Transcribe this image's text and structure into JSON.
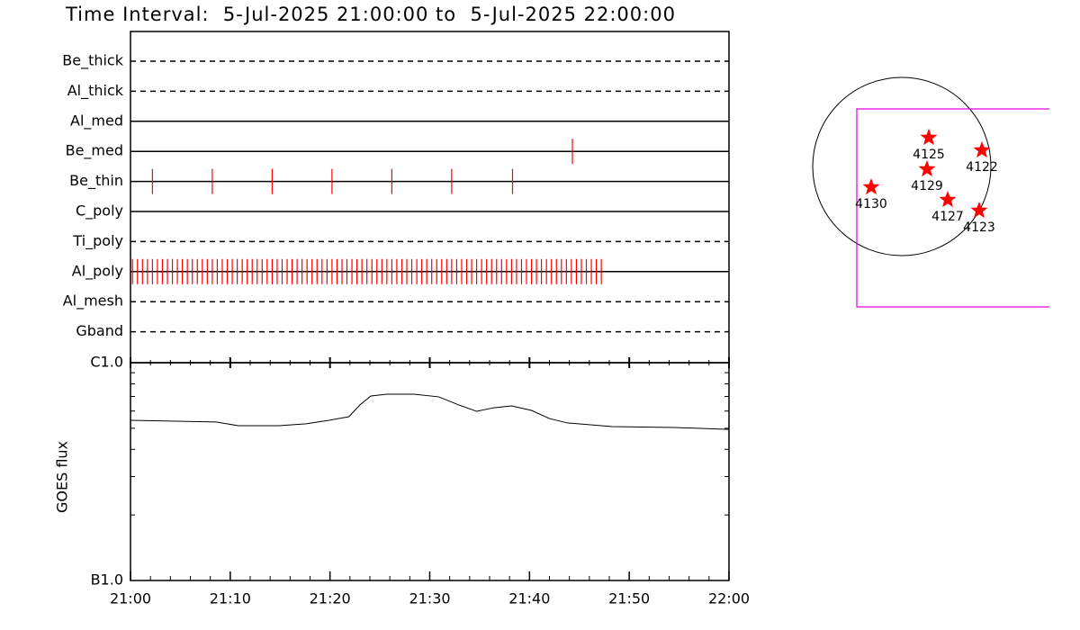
{
  "title": "Time Interval:  5-Jul-2025 21:00:00 to  5-Jul-2025 22:00:00",
  "chart_data": [
    {
      "type": "timeline",
      "xlim": [
        0,
        60
      ],
      "color": "#ff0000",
      "series": [
        {
          "name": "Be_thick",
          "style": "dashed",
          "values": []
        },
        {
          "name": "Al_thick",
          "style": "dashed",
          "values": []
        },
        {
          "name": "Al_med",
          "style": "solid",
          "values": []
        },
        {
          "name": "Be_med",
          "style": "solid",
          "values": [
            44.3
          ]
        },
        {
          "name": "Be_thin",
          "style": "solid",
          "values": [
            2.2,
            8.2,
            14.2,
            20.2,
            26.2,
            32.2,
            38.3
          ]
        },
        {
          "name": "C_poly",
          "style": "solid",
          "values": []
        },
        {
          "name": "Ti_poly",
          "style": "dashed",
          "values": []
        },
        {
          "name": "Al_poly",
          "style": "solid",
          "values": [
            0.2,
            0.7,
            1.2,
            1.7,
            2.2,
            2.7,
            3.2,
            3.7,
            4.2,
            4.7,
            5.2,
            5.7,
            6.2,
            6.7,
            7.2,
            7.7,
            8.2,
            8.7,
            9.2,
            9.7,
            10.2,
            10.7,
            11.2,
            11.7,
            12.2,
            12.7,
            13.2,
            13.7,
            14.2,
            14.7,
            15.2,
            15.7,
            16.2,
            16.7,
            17.2,
            17.7,
            18.2,
            18.7,
            19.2,
            19.7,
            20.2,
            20.7,
            21.2,
            21.7,
            22.2,
            22.7,
            23.2,
            23.7,
            24.2,
            24.7,
            25.2,
            25.7,
            26.2,
            26.7,
            27.2,
            27.7,
            28.2,
            28.7,
            29.2,
            29.7,
            30.2,
            30.7,
            31.2,
            31.7,
            32.2,
            32.7,
            33.2,
            33.7,
            34.2,
            34.7,
            35.2,
            35.7,
            36.2,
            36.7,
            37.2,
            37.7,
            38.2,
            38.7,
            39.2,
            39.7,
            40.2,
            40.7,
            41.2,
            41.7,
            42.2,
            42.7,
            43.2,
            43.7,
            44.2,
            44.7,
            45.2,
            45.7,
            46.2,
            46.7,
            47.2
          ]
        },
        {
          "name": "Al_mesh",
          "style": "dashed",
          "values": []
        },
        {
          "name": "Gband",
          "style": "dashed",
          "values": []
        }
      ]
    },
    {
      "type": "line",
      "ylabel": "GOES flux",
      "log_y": true,
      "color": "#000000",
      "x": [
        0,
        8.6,
        10.8,
        14.9,
        17.6,
        19.9,
        21.9,
        23.0,
        24.1,
        25.7,
        28.4,
        30.9,
        32.9,
        34.7,
        36.4,
        38.2,
        40.2,
        42.0,
        43.8,
        48.3,
        54.6,
        60
      ],
      "values": [
        5.44e-07,
        5.34e-07,
        5.14e-07,
        5.14e-07,
        5.24e-07,
        5.44e-07,
        5.65e-07,
        6.4e-07,
        7.03e-07,
        7.17e-07,
        7.17e-07,
        6.97e-07,
        6.4e-07,
        5.98e-07,
        6.21e-07,
        6.33e-07,
        6.04e-07,
        5.54e-07,
        5.29e-07,
        5.09e-07,
        5.04e-07,
        4.94e-07
      ],
      "xlim": [
        0,
        60
      ],
      "xticks": [
        {
          "value": 0,
          "label": "21:00"
        },
        {
          "value": 10,
          "label": "21:10"
        },
        {
          "value": 20,
          "label": "21:20"
        },
        {
          "value": 30,
          "label": "21:30"
        },
        {
          "value": 40,
          "label": "21:40"
        },
        {
          "value": 50,
          "label": "21:50"
        },
        {
          "value": 60,
          "label": "22:00"
        }
      ],
      "xminor": [
        2,
        4,
        6,
        8,
        12,
        14,
        16,
        18,
        22,
        24,
        26,
        28,
        32,
        34,
        36,
        38,
        42,
        44,
        46,
        48,
        52,
        54,
        56,
        58
      ],
      "ylim": [
        1e-07,
        1e-06
      ],
      "yticks": [
        {
          "value": 1e-07,
          "label": "B1.0"
        },
        {
          "value": 1e-06,
          "label": "C1.0"
        }
      ],
      "yminor": [
        2e-07,
        3e-07,
        4e-07,
        5e-07,
        6e-07,
        7e-07,
        8e-07,
        9e-07
      ]
    },
    {
      "type": "map",
      "color": "#ff0000",
      "labels": [
        "4125",
        "4122",
        "4129",
        "4130",
        "4127",
        "4123"
      ]
    }
  ]
}
